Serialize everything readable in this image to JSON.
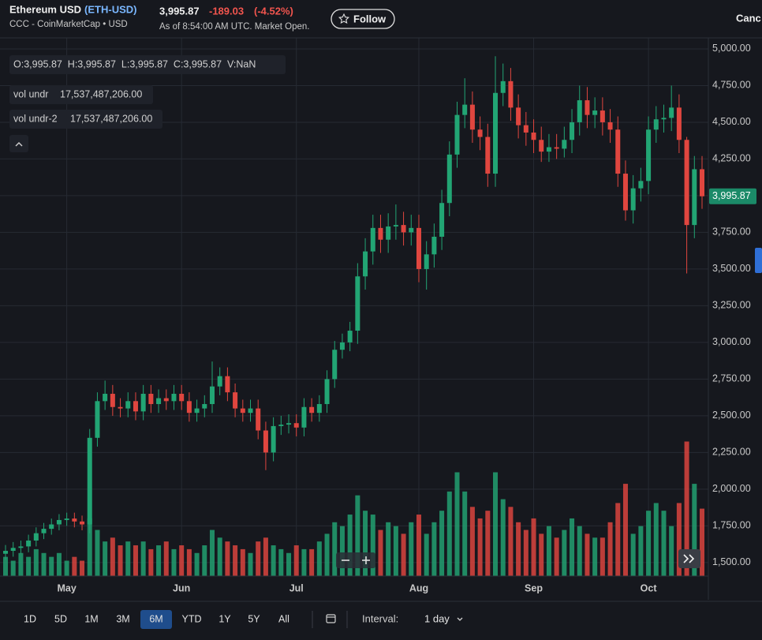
{
  "header": {
    "name": "Ethereum USD",
    "symbol": "(ETH-USD)",
    "source": "CCC - CoinMarketCap • USD",
    "price": "3,995.87",
    "change": "-189.03",
    "change_pct": "(-4.52%)",
    "as_of": "As of 8:54:00 AM UTC. Market Open.",
    "follow": "Follow",
    "chart_type": "Canc"
  },
  "chart_data": {
    "type": "candlestick",
    "ohlc_legend": "O:3,995.87  H:3,995.87  L:3,995.87  C:3,995.87  V:NaN",
    "indicators": [
      {
        "name": "vol undr",
        "value": "17,537,487,206.00"
      },
      {
        "name": "vol undr-2",
        "value": "17,537,487,206.00"
      }
    ],
    "price_label": "3,995.87",
    "categories": [
      null,
      null,
      null,
      null,
      null,
      null,
      null,
      null,
      "May",
      null,
      null,
      null,
      null,
      null,
      null,
      null,
      null,
      null,
      null,
      null,
      null,
      null,
      null,
      "Jun",
      null,
      null,
      null,
      null,
      null,
      null,
      null,
      null,
      null,
      null,
      null,
      null,
      null,
      null,
      "Jul",
      null,
      null,
      null,
      null,
      null,
      null,
      null,
      null,
      null,
      null,
      null,
      null,
      null,
      null,
      null,
      "Aug",
      null,
      null,
      null,
      null,
      null,
      null,
      null,
      null,
      null,
      null,
      null,
      null,
      null,
      null,
      "Sep",
      null,
      null,
      null,
      null,
      null,
      null,
      null,
      null,
      null,
      null,
      null,
      null,
      null,
      null,
      "Oct",
      null,
      null,
      null,
      null,
      null,
      null,
      null
    ],
    "open": [
      1560,
      1580,
      1600,
      1610,
      1650,
      1700,
      1730,
      1760,
      1790,
      1800,
      1780,
      1760,
      2350,
      2600,
      2650,
      2560,
      2550,
      2600,
      2530,
      2650,
      2580,
      2620,
      2600,
      2650,
      2600,
      2520,
      2550,
      2580,
      2700,
      2770,
      2660,
      2550,
      2520,
      2550,
      2400,
      2250,
      2430,
      2440,
      2450,
      2420,
      2560,
      2520,
      2580,
      2750,
      2950,
      3000,
      3080,
      3450,
      3620,
      3780,
      3700,
      3790,
      3800,
      3750,
      3780,
      3500,
      3600,
      3720,
      3950,
      4280,
      4550,
      4620,
      4450,
      4400,
      4150,
      4700,
      4780,
      4600,
      4480,
      4430,
      4380,
      4300,
      4330,
      4320,
      4380,
      4500,
      4650,
      4550,
      4580,
      4500,
      4450,
      4150,
      3900,
      4050,
      4100,
      4450,
      4520,
      4530,
      4600,
      4380,
      3800,
      4180
    ],
    "high": [
      1620,
      1640,
      1650,
      1690,
      1740,
      1770,
      1800,
      1830,
      1840,
      1840,
      1820,
      2410,
      2660,
      2740,
      2710,
      2620,
      2660,
      2660,
      2710,
      2710,
      2680,
      2680,
      2710,
      2710,
      2660,
      2610,
      2640,
      2870,
      2830,
      2830,
      2720,
      2610,
      2610,
      2610,
      2460,
      2490,
      2500,
      2510,
      2510,
      2620,
      2620,
      2640,
      2810,
      3010,
      3060,
      3140,
      3540,
      3710,
      3870,
      3870,
      3880,
      3940,
      3890,
      3870,
      3870,
      3690,
      3810,
      4040,
      4370,
      4640,
      4800,
      4710,
      4540,
      4490,
      4950,
      4900,
      4870,
      4690,
      4570,
      4520,
      4470,
      4420,
      4420,
      4470,
      4590,
      4750,
      4740,
      4670,
      4670,
      4590,
      4540,
      4240,
      4140,
      4190,
      4540,
      4610,
      4620,
      4750,
      4690,
      4400,
      4270,
      4270
    ],
    "low": [
      1520,
      1540,
      1560,
      1570,
      1610,
      1660,
      1690,
      1720,
      1750,
      1740,
      1720,
      1700,
      2290,
      2540,
      2500,
      2490,
      2490,
      2470,
      2470,
      2520,
      2520,
      2540,
      2540,
      2540,
      2460,
      2460,
      2490,
      2520,
      2640,
      2600,
      2490,
      2460,
      2460,
      2340,
      2130,
      2190,
      2370,
      2380,
      2360,
      2360,
      2460,
      2460,
      2520,
      2690,
      2890,
      2940,
      2990,
      3360,
      3530,
      3610,
      3610,
      3700,
      3660,
      3660,
      3410,
      3360,
      3510,
      3630,
      3860,
      4190,
      4460,
      4360,
      4310,
      4060,
      4060,
      4610,
      4510,
      4390,
      4340,
      4290,
      4230,
      4230,
      4250,
      4260,
      4290,
      4410,
      4460,
      4460,
      4410,
      4360,
      4060,
      3830,
      3810,
      3960,
      4010,
      4360,
      4430,
      4440,
      4290,
      3470,
      3710,
      3910
    ],
    "close": [
      1580,
      1600,
      1610,
      1650,
      1700,
      1730,
      1760,
      1790,
      1800,
      1780,
      1760,
      2350,
      2600,
      2650,
      2560,
      2550,
      2600,
      2530,
      2650,
      2580,
      2620,
      2600,
      2650,
      2600,
      2520,
      2550,
      2580,
      2700,
      2770,
      2660,
      2550,
      2520,
      2550,
      2400,
      2250,
      2430,
      2440,
      2450,
      2420,
      2560,
      2520,
      2580,
      2750,
      2950,
      3000,
      3080,
      3450,
      3620,
      3780,
      3700,
      3790,
      3800,
      3750,
      3780,
      3500,
      3600,
      3720,
      3950,
      4280,
      4550,
      4620,
      4450,
      4400,
      4150,
      4700,
      4780,
      4600,
      4480,
      4430,
      4380,
      4300,
      4330,
      4320,
      4380,
      4500,
      4650,
      4550,
      4580,
      4500,
      4450,
      4150,
      3900,
      4050,
      4100,
      4450,
      4520,
      4530,
      4600,
      4380,
      3800,
      4180,
      3995.87
    ],
    "volume": [
      5,
      4,
      6,
      5,
      7,
      6,
      5,
      6,
      4,
      5,
      4,
      15,
      12,
      9,
      10,
      8,
      9,
      8,
      9,
      7,
      8,
      9,
      7,
      8,
      7,
      6,
      8,
      12,
      10,
      9,
      8,
      7,
      6,
      9,
      10,
      8,
      7,
      6,
      8,
      7,
      7,
      9,
      11,
      14,
      13,
      16,
      21,
      17,
      16,
      12,
      14,
      13,
      11,
      14,
      16,
      11,
      14,
      17,
      22,
      27,
      22,
      18,
      15,
      17,
      27,
      20,
      18,
      14,
      12,
      15,
      11,
      13,
      10,
      12,
      15,
      13,
      11,
      10,
      10,
      14,
      19,
      24,
      11,
      13,
      17,
      19,
      17,
      13,
      19,
      35,
      24,
      17.537487206
    ],
    "up_color": "#22a574",
    "down_color": "#e0463f",
    "ylim": [
      1408,
      5075
    ],
    "yticks": [
      {
        "value": 1500,
        "label": "1,500.00"
      },
      {
        "value": 1750,
        "label": "1,750.00"
      },
      {
        "value": 2000,
        "label": "2,000.00"
      },
      {
        "value": 2250,
        "label": "2,250.00"
      },
      {
        "value": 2500,
        "label": "2,500.00"
      },
      {
        "value": 2750,
        "label": "2,750.00"
      },
      {
        "value": 3000,
        "label": "3,000.00"
      },
      {
        "value": 3250,
        "label": "3,250.00"
      },
      {
        "value": 3500,
        "label": "3,500.00"
      },
      {
        "value": 3750,
        "label": "3,750.00"
      },
      {
        "value": 4000,
        "label": "4,000.00"
      },
      {
        "value": 4250,
        "label": "4,250.00"
      },
      {
        "value": 4500,
        "label": "4,500.00"
      },
      {
        "value": 4750,
        "label": "4,750.00"
      },
      {
        "value": 5000,
        "label": "5,000.00"
      }
    ],
    "y2lim": [
      0,
      140
    ],
    "grid": true
  },
  "toolbar": {
    "ranges": [
      "1D",
      "5D",
      "1M",
      "3M",
      "6M",
      "YTD",
      "1Y",
      "5Y",
      "All"
    ],
    "selected": "6M",
    "interval_label": "Interval:",
    "interval": "1 day"
  }
}
